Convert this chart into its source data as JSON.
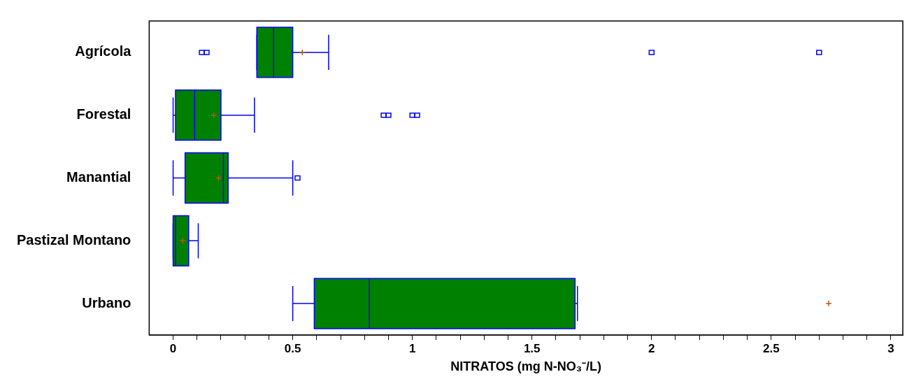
{
  "chart_data": {
    "type": "box",
    "orientation": "horizontal",
    "xlabel": "NITRATOS (mg N-NO₃⁻/L)",
    "categories": [
      "Agrícola",
      "Forestal",
      "Manantial",
      "Pastizal Montano",
      "Urbano"
    ],
    "color": "#008000",
    "boxes": [
      {
        "low": 0.35,
        "q1": 0.35,
        "median": 0.42,
        "q3": 0.5,
        "high": 0.65,
        "mean": 0.54,
        "outliers": [
          0.12,
          0.14,
          2.0,
          2.7
        ]
      },
      {
        "low": 0.0,
        "q1": 0.01,
        "median": 0.09,
        "q3": 0.2,
        "high": 0.34,
        "mean": 0.17,
        "outliers": [
          0.88,
          0.9,
          1.0,
          1.02
        ]
      },
      {
        "low": 0.0,
        "q1": 0.05,
        "median": 0.21,
        "q3": 0.23,
        "high": 0.5,
        "mean": 0.19,
        "outliers": [
          0.52
        ]
      },
      {
        "low": 0.0,
        "q1": 0.0,
        "median": 0.01,
        "q3": 0.065,
        "high": 0.105,
        "mean": 0.04
      },
      {
        "low": 0.5,
        "q1": 0.59,
        "median": 0.82,
        "q3": 1.68,
        "high": 1.69,
        "mean": 2.74
      }
    ],
    "xlim": [
      -0.1,
      3.05
    ],
    "xticks": [
      0,
      {
        "value": 0.1,
        "label": null
      },
      {
        "value": 0.2,
        "label": null
      },
      {
        "value": 0.3,
        "label": null
      },
      {
        "value": 0.4,
        "label": null
      },
      0.5,
      {
        "value": 0.6,
        "label": null
      },
      {
        "value": 0.7,
        "label": null
      },
      {
        "value": 0.8,
        "label": null
      },
      {
        "value": 0.9,
        "label": null
      },
      1,
      {
        "value": 1.1,
        "label": null
      },
      {
        "value": 1.2,
        "label": null
      },
      {
        "value": 1.3,
        "label": null
      },
      {
        "value": 1.4,
        "label": null
      },
      1.5,
      {
        "value": 1.6,
        "label": null
      },
      {
        "value": 1.7,
        "label": null
      },
      {
        "value": 1.8,
        "label": null
      },
      {
        "value": 1.9,
        "label": null
      },
      2,
      {
        "value": 2.1,
        "label": null
      },
      {
        "value": 2.2,
        "label": null
      },
      {
        "value": 2.3,
        "label": null
      },
      {
        "value": 2.4,
        "label": null
      },
      2.5,
      {
        "value": 2.6,
        "label": null
      },
      {
        "value": 2.7,
        "label": null
      },
      {
        "value": 2.8,
        "label": null
      },
      {
        "value": 2.9,
        "label": null
      },
      3
    ],
    "grid": false,
    "legend": false
  }
}
